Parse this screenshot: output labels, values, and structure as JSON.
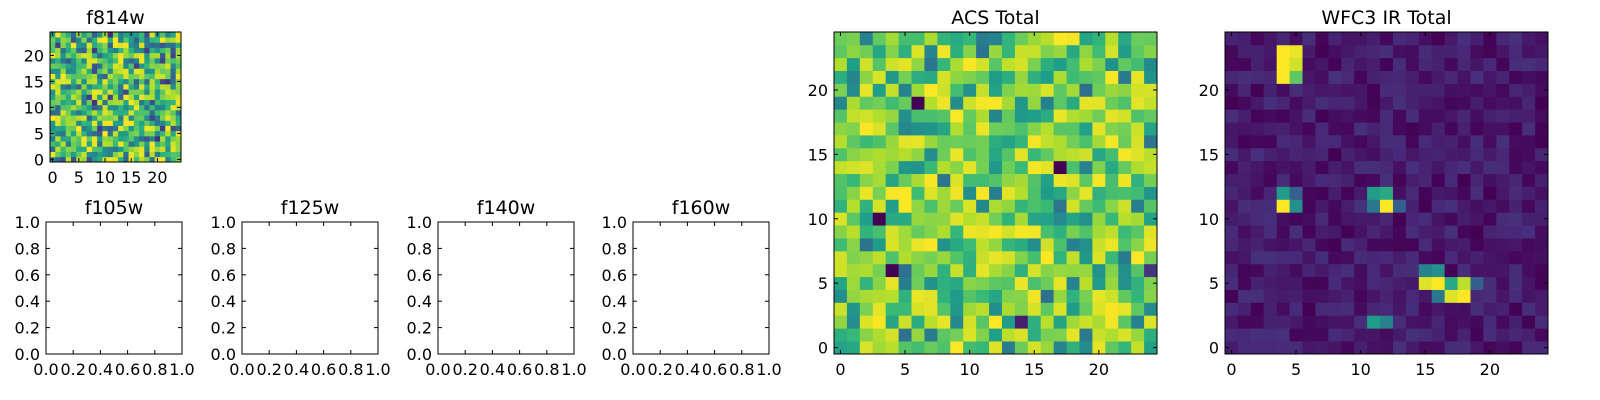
{
  "figure": {
    "panels": [
      {
        "id": "f814w",
        "title": "f814w",
        "kind": "image",
        "cmap": "viridis",
        "xticks": [
          0,
          5,
          10,
          15,
          20
        ],
        "yticks": [
          0,
          5,
          10,
          15,
          20
        ]
      },
      {
        "id": "f105w",
        "title": "f105w",
        "kind": "empty",
        "xticks": [
          "0.0",
          "0.2",
          "0.4",
          "0.6",
          "0.8",
          "1.0"
        ],
        "yticks": [
          "0.0",
          "0.2",
          "0.4",
          "0.6",
          "0.8",
          "1.0"
        ]
      },
      {
        "id": "f125w",
        "title": "f125w",
        "kind": "empty",
        "xticks": [
          "0.0",
          "0.2",
          "0.4",
          "0.6",
          "0.8",
          "1.0"
        ],
        "yticks": [
          "0.0",
          "0.2",
          "0.4",
          "0.6",
          "0.8",
          "1.0"
        ]
      },
      {
        "id": "f140w",
        "title": "f140w",
        "kind": "empty",
        "xticks": [
          "0.0",
          "0.2",
          "0.4",
          "0.6",
          "0.8",
          "1.0"
        ],
        "yticks": [
          "0.0",
          "0.2",
          "0.4",
          "0.6",
          "0.8",
          "1.0"
        ]
      },
      {
        "id": "f160w",
        "title": "f160w",
        "kind": "empty",
        "xticks": [
          "0.0",
          "0.2",
          "0.4",
          "0.6",
          "0.8",
          "1.0"
        ],
        "yticks": [
          "0.0",
          "0.2",
          "0.4",
          "0.6",
          "0.8",
          "1.0"
        ]
      },
      {
        "id": "acs-total",
        "title": "ACS Total",
        "kind": "image",
        "cmap": "viridis",
        "xticks": [
          0,
          5,
          10,
          15,
          20
        ],
        "yticks": [
          0,
          5,
          10,
          15,
          20
        ]
      },
      {
        "id": "wfc3-ir-total",
        "title": "WFC3 IR Total",
        "kind": "image",
        "cmap": "viridis",
        "xticks": [
          0,
          5,
          10,
          15,
          20
        ],
        "yticks": [
          0,
          5,
          10,
          15,
          20
        ]
      }
    ]
  },
  "chart_data": [
    {
      "type": "heatmap",
      "title": "f814w",
      "cmap": "viridis",
      "grid_size": [
        25,
        25
      ],
      "xlim": [
        -0.5,
        24.5
      ],
      "ylim": [
        -0.5,
        24.5
      ],
      "pattern": "noise",
      "value_range": [
        0.1,
        1.0
      ],
      "low_pixels": []
    },
    {
      "type": "empty",
      "title": "f105w",
      "xlim": [
        0,
        1
      ],
      "ylim": [
        0,
        1
      ]
    },
    {
      "type": "empty",
      "title": "f125w",
      "xlim": [
        0,
        1
      ],
      "ylim": [
        0,
        1
      ]
    },
    {
      "type": "empty",
      "title": "f140w",
      "xlim": [
        0,
        1
      ],
      "ylim": [
        0,
        1
      ]
    },
    {
      "type": "empty",
      "title": "f160w",
      "xlim": [
        0,
        1
      ],
      "ylim": [
        0,
        1
      ]
    },
    {
      "type": "heatmap",
      "title": "ACS Total",
      "cmap": "viridis",
      "grid_size": [
        25,
        25
      ],
      "xlim": [
        -0.5,
        24.5
      ],
      "ylim": [
        -0.5,
        24.5
      ],
      "pattern": "noise",
      "value_range": [
        0.35,
        1.0
      ],
      "low_pixels": [
        {
          "x": 3,
          "y": 10,
          "value": 0.0
        },
        {
          "x": 4,
          "y": 6,
          "value": 0.0
        },
        {
          "x": 6,
          "y": 19,
          "value": 0.0
        },
        {
          "x": 17,
          "y": 14,
          "value": 0.0
        },
        {
          "x": 14,
          "y": 2,
          "value": 0.08
        },
        {
          "x": 24,
          "y": 6,
          "value": 0.15
        }
      ]
    },
    {
      "type": "heatmap",
      "title": "WFC3 IR Total",
      "cmap": "viridis",
      "grid_size": [
        25,
        25
      ],
      "xlim": [
        -0.5,
        24.5
      ],
      "ylim": [
        -0.5,
        24.5
      ],
      "pattern": "background_with_sources",
      "background_range": [
        0.0,
        0.14
      ],
      "sources": [
        {
          "x": 4,
          "y": 23,
          "pixels": [
            [
              4,
              23,
              1.0
            ],
            [
              5,
              23,
              0.97
            ],
            [
              4,
              22,
              1.0
            ],
            [
              5,
              22,
              0.93
            ],
            [
              4,
              21,
              1.0
            ],
            [
              5,
              21,
              0.75
            ]
          ]
        },
        {
          "x": 4,
          "y": 11.5,
          "pixels": [
            [
              4,
              12,
              0.55
            ],
            [
              5,
              12,
              0.3
            ],
            [
              4,
              11,
              1.0
            ],
            [
              5,
              11,
              0.5
            ]
          ]
        },
        {
          "x": 12,
          "y": 12,
          "pixels": [
            [
              11,
              12,
              0.55
            ],
            [
              12,
              12,
              0.6
            ],
            [
              12,
              11,
              1.0
            ],
            [
              11,
              11,
              0.4
            ],
            [
              13,
              11,
              0.3
            ]
          ]
        },
        {
          "x": 17,
          "y": 5,
          "pixels": [
            [
              15,
              6,
              0.45
            ],
            [
              16,
              6,
              0.5
            ],
            [
              15,
              5,
              0.95
            ],
            [
              16,
              5,
              1.0
            ],
            [
              17,
              5,
              0.6
            ],
            [
              18,
              5,
              0.9
            ],
            [
              19,
              5,
              0.3
            ],
            [
              17,
              4,
              0.95
            ],
            [
              18,
              4,
              1.0
            ],
            [
              16,
              4,
              0.4
            ]
          ]
        },
        {
          "x": 11.5,
          "y": 2,
          "pixels": [
            [
              11,
              2,
              0.55
            ],
            [
              12,
              2,
              0.45
            ]
          ]
        }
      ]
    }
  ]
}
